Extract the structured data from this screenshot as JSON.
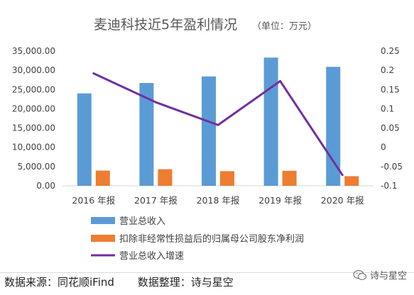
{
  "chart_data": {
    "type": "bar",
    "title": "麦迪科技近5年盈利情况",
    "title_unit": "（单位：万元）",
    "categories": [
      "2016 年报",
      "2017 年报",
      "2018 年报",
      "2019 年报",
      "2020 年报"
    ],
    "series": [
      {
        "name": "营业总收入",
        "type": "bar",
        "axis": "left",
        "color": "#5b9bd5",
        "values": [
          24000,
          26700,
          28400,
          33300,
          30900
        ]
      },
      {
        "name": "扣除非经常性损益后的归属母公司股东净利润",
        "type": "bar",
        "axis": "left",
        "color": "#ed7d31",
        "values": [
          3950,
          4300,
          3800,
          3900,
          2500
        ]
      },
      {
        "name": "营业总收入增速",
        "type": "line",
        "axis": "right",
        "color": "#7030a0",
        "values": [
          0.192,
          0.117,
          0.058,
          0.172,
          -0.072
        ]
      }
    ],
    "y_left": {
      "min": 0,
      "max": 35000,
      "ticks": [
        0,
        5000,
        10000,
        15000,
        20000,
        25000,
        30000,
        35000
      ],
      "tick_labels": [
        "0.00",
        "5,000.00",
        "10,000.00",
        "15,000.00",
        "20,000.00",
        "25,000.00",
        "30,000.00",
        "35,000.00"
      ]
    },
    "y_right": {
      "min": -0.1,
      "max": 0.25,
      "ticks": [
        -0.1,
        -0.05,
        0,
        0.05,
        0.1,
        0.15,
        0.2,
        0.25
      ],
      "tick_labels": [
        "-0.1",
        "-0.05",
        "0",
        "0.05",
        "0.1",
        "0.15",
        "0.2",
        "0.25"
      ]
    },
    "grid": false,
    "legend_position": "bottom"
  },
  "footer": {
    "source": "数据来源：同花顺iFind",
    "arranged": "数据整理：诗与星空"
  },
  "watermark": {
    "icon": "wechat-icon",
    "text": "诗与星空"
  }
}
